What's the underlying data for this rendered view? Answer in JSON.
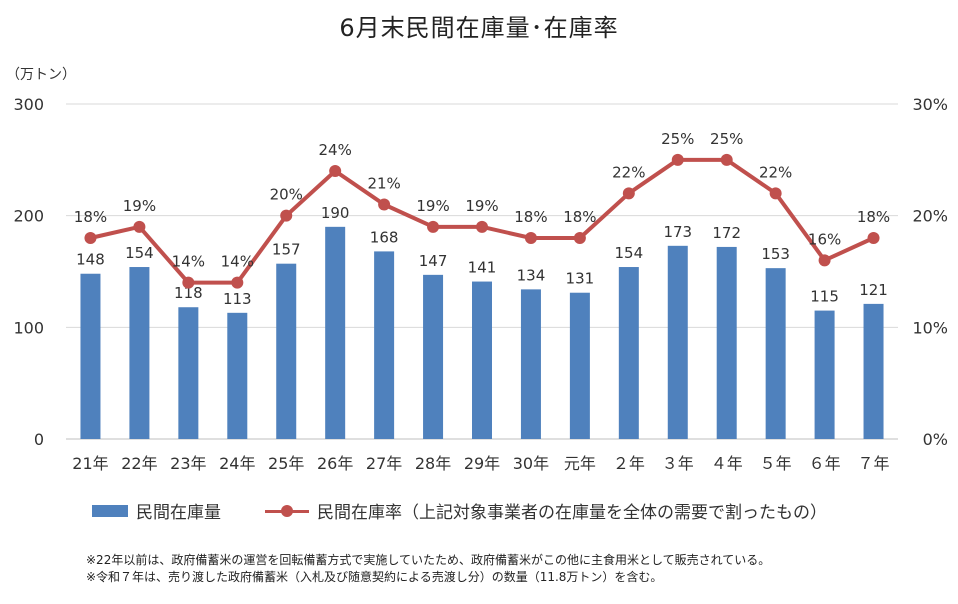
{
  "title": "6月末民間在庫量･在庫率",
  "unit_label": "（万トン）",
  "legend": {
    "bar_label": "民間在庫量",
    "line_label": "民間在庫率（上記対象事業者の在庫量を全体の需要で割ったもの）"
  },
  "notes": [
    "※22年以前は、政府備蓄米の運営を回転備蓄方式で実施していたため、政府備蓄米がこの他に主食用米として販売されている。",
    "※令和７年は、売り渡した政府備蓄米（入札及び随意契約による売渡し分）の数量（11.8万トン）を含む。"
  ],
  "colors": {
    "bar": "#4f81bd",
    "line": "#c0504d",
    "grid": "#d9d9d9"
  },
  "chart_data": {
    "type": "bar",
    "title": "6月末民間在庫量･在庫率",
    "categories": [
      "21年",
      "22年",
      "23年",
      "24年",
      "25年",
      "26年",
      "27年",
      "28年",
      "29年",
      "30年",
      "元年",
      "２年",
      "３年",
      "４年",
      "５年",
      "６年",
      "７年"
    ],
    "series": [
      {
        "name": "民間在庫量",
        "type": "bar",
        "axis": "left",
        "values": [
          148,
          154,
          118,
          113,
          157,
          190,
          168,
          147,
          141,
          134,
          131,
          154,
          173,
          172,
          153,
          115,
          121
        ],
        "labels": [
          "148",
          "154",
          "118",
          "113",
          "157",
          "190",
          "168",
          "147",
          "141",
          "134",
          "131",
          "154",
          "173",
          "172",
          "153",
          "115",
          "121"
        ]
      },
      {
        "name": "民間在庫率（上記対象事業者の在庫量を全体の需要で割ったもの）",
        "type": "line",
        "axis": "right",
        "values": [
          18,
          19,
          14,
          14,
          20,
          24,
          21,
          19,
          19,
          18,
          18,
          22,
          25,
          25,
          22,
          16,
          18
        ],
        "labels": [
          "18%",
          "19%",
          "14%",
          "14%",
          "20%",
          "24%",
          "21%",
          "19%",
          "19%",
          "18%",
          "18%",
          "22%",
          "25%",
          "25%",
          "22%",
          "16%",
          "18%"
        ]
      }
    ],
    "ylabel": "（万トン）",
    "ylim": [
      0,
      300
    ],
    "yticks": [
      "0",
      "100",
      "200",
      "300"
    ],
    "y2lim": [
      0,
      30
    ],
    "y2ticks": [
      "0%",
      "10%",
      "20%",
      "30%"
    ],
    "grid": true,
    "legend_position": "bottom"
  }
}
